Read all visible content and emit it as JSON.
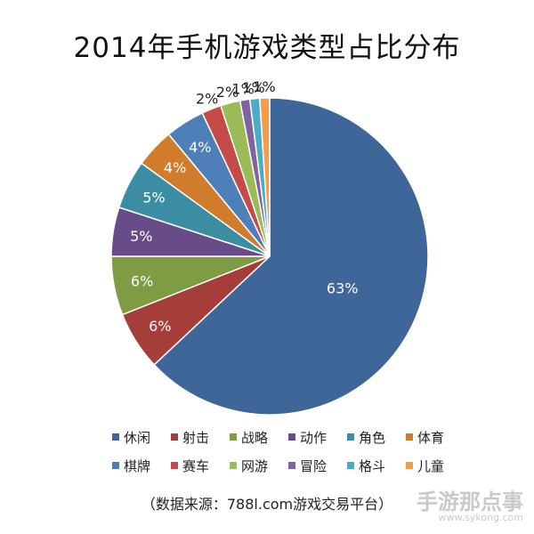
{
  "chart_data": {
    "type": "pie",
    "title": "2014年手机游戏类型占比分布",
    "categories": [
      "休闲",
      "射击",
      "战略",
      "动作",
      "角色",
      "体育",
      "棋牌",
      "赛车",
      "网游",
      "冒险",
      "格斗",
      "儿童"
    ],
    "values": [
      63,
      6,
      6,
      5,
      5,
      4,
      4,
      2,
      2,
      1,
      1,
      1
    ],
    "value_labels": [
      "63%",
      "6%",
      "6%",
      "5%",
      "5%",
      "4%",
      "4%",
      "2%",
      "2%",
      "1%",
      "1%",
      "1%"
    ],
    "colors": [
      "#3F6698",
      "#A53E3A",
      "#7E9C44",
      "#684C89",
      "#3A8DA3",
      "#D07C2C",
      "#4F7FB8",
      "#C44B48",
      "#9BBB59",
      "#8064A2",
      "#4BACC6",
      "#F59D49"
    ],
    "legend_position": "bottom",
    "start_angle": "12 o'clock",
    "direction": "clockwise"
  },
  "source": "（数据来源：788l.com游戏交易平台）",
  "watermark": {
    "text": "手游那点事",
    "url": "www.sykong.com"
  }
}
